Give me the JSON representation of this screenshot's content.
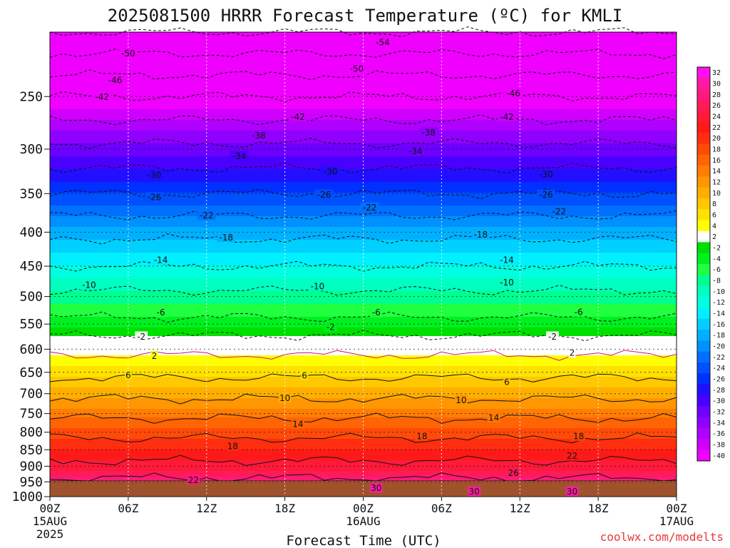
{
  "title": "2025081500 HRRR Forecast Temperature (ºC) for KMLI",
  "credit": "coolwx.com/modelts",
  "chart_data": {
    "type": "heatmap",
    "title": "2025081500 HRRR Forecast Temperature (ºC) for KMLI",
    "xlabel": "Forecast Time (UTC)",
    "ylabel": "",
    "y_scale": "log-pressure",
    "ylim": [
      1000,
      200
    ],
    "xlim": [
      0,
      48
    ],
    "grid": true,
    "x_ticks": [
      {
        "hour": 0,
        "label": "00Z",
        "sub": "15AUG",
        "sub2": "2025"
      },
      {
        "hour": 6,
        "label": "06Z",
        "sub": "",
        "sub2": ""
      },
      {
        "hour": 12,
        "label": "12Z",
        "sub": "",
        "sub2": ""
      },
      {
        "hour": 18,
        "label": "18Z",
        "sub": "",
        "sub2": ""
      },
      {
        "hour": 24,
        "label": "00Z",
        "sub": "16AUG",
        "sub2": ""
      },
      {
        "hour": 30,
        "label": "06Z",
        "sub": "",
        "sub2": ""
      },
      {
        "hour": 36,
        "label": "12Z",
        "sub": "",
        "sub2": ""
      },
      {
        "hour": 42,
        "label": "18Z",
        "sub": "",
        "sub2": ""
      },
      {
        "hour": 48,
        "label": "00Z",
        "sub": "17AUG",
        "sub2": ""
      }
    ],
    "y_ticks": [
      250,
      300,
      350,
      400,
      450,
      500,
      550,
      600,
      650,
      700,
      750,
      800,
      850,
      900,
      950,
      1000
    ],
    "colorbar": {
      "levels": [
        32,
        30,
        28,
        26,
        24,
        22,
        20,
        18,
        16,
        14,
        12,
        10,
        8,
        6,
        4,
        2,
        -2,
        -4,
        -6,
        -8,
        -10,
        -12,
        -14,
        -16,
        -18,
        -20,
        -22,
        -24,
        -26,
        -28,
        -30,
        -32,
        -34,
        -36,
        -38,
        -40
      ],
      "colors": [
        "#ff10ee",
        "#ff1aa5",
        "#ff1a80",
        "#ff1a5a",
        "#ff1a3a",
        "#ff1a1a",
        "#ff2e0e",
        "#ff4a08",
        "#ff6405",
        "#ff7d03",
        "#ff9602",
        "#ffaf00",
        "#ffc800",
        "#ffe100",
        "#ffff00",
        "#ffffff",
        "#00e000",
        "#00f020",
        "#20ff40",
        "#00ff90",
        "#00ffc0",
        "#00ffe0",
        "#00f0ff",
        "#00d0ff",
        "#00b0ff",
        "#0090ff",
        "#0070ff",
        "#0050ff",
        "#0030ff",
        "#2010ff",
        "#4a00ff",
        "#6e00ff",
        "#9000ff",
        "#b000ff",
        "#d000ff",
        "#f000ff"
      ]
    },
    "profile": [
      {
        "pressure": 1000,
        "temp": 31
      },
      {
        "pressure": 950,
        "temp": 27
      },
      {
        "pressure": 900,
        "temp": 23
      },
      {
        "pressure": 850,
        "temp": 20
      },
      {
        "pressure": 800,
        "temp": 17
      },
      {
        "pressure": 750,
        "temp": 13
      },
      {
        "pressure": 700,
        "temp": 9
      },
      {
        "pressure": 650,
        "temp": 5
      },
      {
        "pressure": 600,
        "temp": 1
      },
      {
        "pressure": 580,
        "temp": -1
      },
      {
        "pressure": 550,
        "temp": -5
      },
      {
        "pressure": 500,
        "temp": -9
      },
      {
        "pressure": 450,
        "temp": -14
      },
      {
        "pressure": 400,
        "temp": -19
      },
      {
        "pressure": 350,
        "temp": -26
      },
      {
        "pressure": 300,
        "temp": -33
      },
      {
        "pressure": 250,
        "temp": -42
      },
      {
        "pressure": 200,
        "temp": -54
      }
    ],
    "contour_labels": [
      {
        "text": "-54",
        "hour": 25.5,
        "pressure": 207
      },
      {
        "text": "-50",
        "hour": 6.0,
        "pressure": 215
      },
      {
        "text": "-50",
        "hour": 23.5,
        "pressure": 227
      },
      {
        "text": "-46",
        "hour": 5.0,
        "pressure": 236
      },
      {
        "text": "-46",
        "hour": 35.5,
        "pressure": 247
      },
      {
        "text": "-42",
        "hour": 4.0,
        "pressure": 250
      },
      {
        "text": "-42",
        "hour": 19.0,
        "pressure": 268
      },
      {
        "text": "-42",
        "hour": 35.0,
        "pressure": 268
      },
      {
        "text": "-38",
        "hour": 16.0,
        "pressure": 286
      },
      {
        "text": "-38",
        "hour": 29.0,
        "pressure": 283
      },
      {
        "text": "-34",
        "hour": 14.5,
        "pressure": 307
      },
      {
        "text": "-34",
        "hour": 28.0,
        "pressure": 302
      },
      {
        "text": "-30",
        "hour": 8.0,
        "pressure": 328
      },
      {
        "text": "-30",
        "hour": 21.5,
        "pressure": 324
      },
      {
        "text": "-30",
        "hour": 38.0,
        "pressure": 327
      },
      {
        "text": "-26",
        "hour": 8.0,
        "pressure": 354
      },
      {
        "text": "-26",
        "hour": 21.0,
        "pressure": 351
      },
      {
        "text": "-26",
        "hour": 38.0,
        "pressure": 351
      },
      {
        "text": "-22",
        "hour": 12.0,
        "pressure": 377
      },
      {
        "text": "-22",
        "hour": 24.5,
        "pressure": 367
      },
      {
        "text": "-22",
        "hour": 39.0,
        "pressure": 372
      },
      {
        "text": "-18",
        "hour": 13.5,
        "pressure": 407
      },
      {
        "text": "-18",
        "hour": 33.0,
        "pressure": 403
      },
      {
        "text": "-14",
        "hour": 8.5,
        "pressure": 440
      },
      {
        "text": "-14",
        "hour": 35.0,
        "pressure": 440
      },
      {
        "text": "-10",
        "hour": 3.0,
        "pressure": 480
      },
      {
        "text": "-10",
        "hour": 20.5,
        "pressure": 482
      },
      {
        "text": "-10",
        "hour": 35.0,
        "pressure": 476
      },
      {
        "text": "-6",
        "hour": 8.5,
        "pressure": 528
      },
      {
        "text": "-6",
        "hour": 25.0,
        "pressure": 528
      },
      {
        "text": "-6",
        "hour": 40.5,
        "pressure": 527
      },
      {
        "text": "-2",
        "hour": 7.0,
        "pressure": 574
      },
      {
        "text": "-2",
        "hour": 21.5,
        "pressure": 555
      },
      {
        "text": "-2",
        "hour": 38.5,
        "pressure": 574
      },
      {
        "text": "2",
        "hour": 8.0,
        "pressure": 614
      },
      {
        "text": "2",
        "hour": 40.0,
        "pressure": 607
      },
      {
        "text": "6",
        "hour": 6.0,
        "pressure": 656
      },
      {
        "text": "6",
        "hour": 19.5,
        "pressure": 657
      },
      {
        "text": "6",
        "hour": 35.0,
        "pressure": 672
      },
      {
        "text": "10",
        "hour": 18.0,
        "pressure": 710
      },
      {
        "text": "10",
        "hour": 31.5,
        "pressure": 715
      },
      {
        "text": "14",
        "hour": 19.0,
        "pressure": 777
      },
      {
        "text": "14",
        "hour": 34.0,
        "pressure": 760
      },
      {
        "text": "18",
        "hour": 14.0,
        "pressure": 839
      },
      {
        "text": "18",
        "hour": 28.5,
        "pressure": 810
      },
      {
        "text": "18",
        "hour": 40.5,
        "pressure": 810
      },
      {
        "text": "22",
        "hour": 11.0,
        "pressure": 943
      },
      {
        "text": "22",
        "hour": 40.0,
        "pressure": 868
      },
      {
        "text": "26",
        "hour": 35.5,
        "pressure": 920
      },
      {
        "text": "30",
        "hour": 25.0,
        "pressure": 970
      },
      {
        "text": "30",
        "hour": 32.5,
        "pressure": 982
      },
      {
        "text": "30",
        "hour": 40.0,
        "pressure": 982
      }
    ]
  }
}
